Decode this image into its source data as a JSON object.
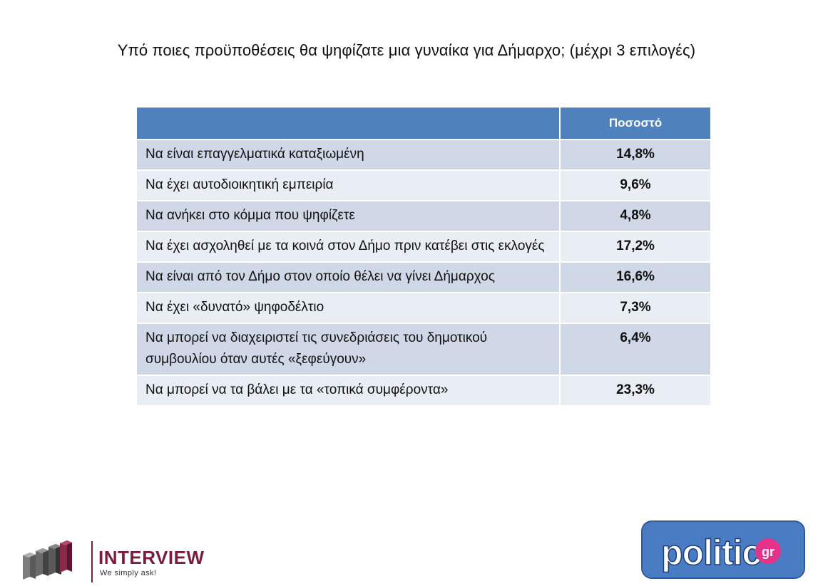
{
  "title": "Υπό ποιες προϋποθέσεις θα ψηφίζατε μια γυναίκα για Δήμαρχο; (μέχρι 3 επιλογές)",
  "table": {
    "header": {
      "label_column": "",
      "value_column": "Ποσοστό"
    },
    "rows": [
      {
        "label": "Να είναι επαγγελματικά καταξιωμένη",
        "value": "14,8%"
      },
      {
        "label": "Να έχει αυτοδιοικητική εμπειρία",
        "value": "9,6%"
      },
      {
        "label": "Να ανήκει στο κόμμα που ψηφίζετε",
        "value": "4,8%"
      },
      {
        "label": "Να έχει ασχοληθεί με τα κοινά στον Δήμο πριν κατέβει στις εκλογές",
        "value": "17,2%"
      },
      {
        "label": "Να είναι από τον Δήμο στον οποίο θέλει να γίνει Δήμαρχος",
        "value": "16,6%"
      },
      {
        "label": "Να έχει «δυνατό» ψηφοδέλτιο",
        "value": "7,3%"
      },
      {
        "label": "Να μπορεί να διαχειριστεί τις συνεδριάσεις του δημοτικού συμβουλίου όταν αυτές «ξεφεύγουν»",
        "value": "6,4%"
      },
      {
        "label": "Να μπορεί να τα βάλει με τα «τοπικά συμφέροντα»",
        "value": "23,3%"
      }
    ]
  },
  "logos": {
    "interview": {
      "brand": "INTERVIEW",
      "tagline": "We simply ask!",
      "icon": "bar-blocks-logo-icon"
    },
    "politic": {
      "text": "politic",
      "suffix": "gr"
    }
  },
  "colors": {
    "header_bg": "#4f81bd",
    "row_odd_bg": "#d0d8e8",
    "row_even_bg": "#e9edf4",
    "interview_brand": "#7a1d3a",
    "politic_bg": "#4a7cc4",
    "politic_badge": "#e5338a"
  }
}
